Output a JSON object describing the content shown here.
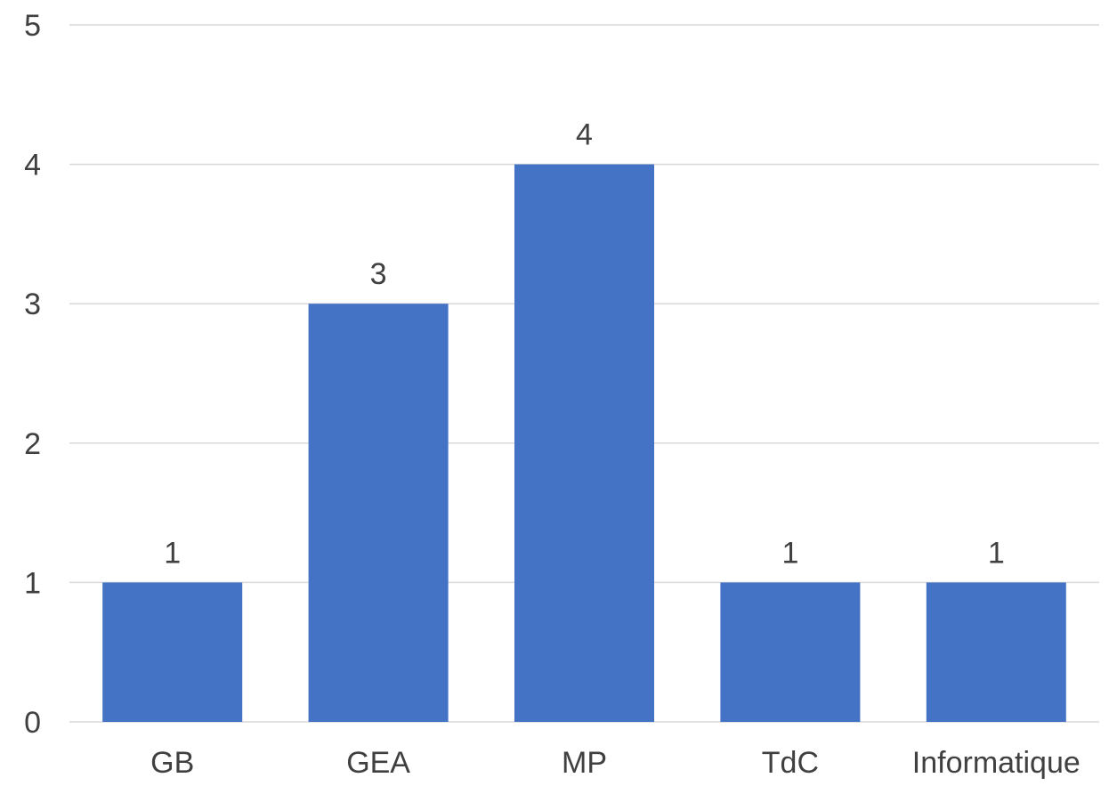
{
  "chart_data": {
    "type": "bar",
    "categories": [
      "GB",
      "GEA",
      "MP",
      "TdC",
      "Informatique"
    ],
    "values": [
      1,
      3,
      4,
      1,
      1
    ],
    "data_labels": [
      "1",
      "3",
      "4",
      "1",
      "1"
    ],
    "title": "",
    "xlabel": "",
    "ylabel": "",
    "ylim": [
      0,
      5
    ],
    "yticks": [
      "0",
      "1",
      "2",
      "3",
      "4",
      "5"
    ],
    "grid": true,
    "legend": "none",
    "colors": {
      "bar": "#4472C4",
      "grid": "#D9D9D9",
      "text": "#404040"
    }
  }
}
